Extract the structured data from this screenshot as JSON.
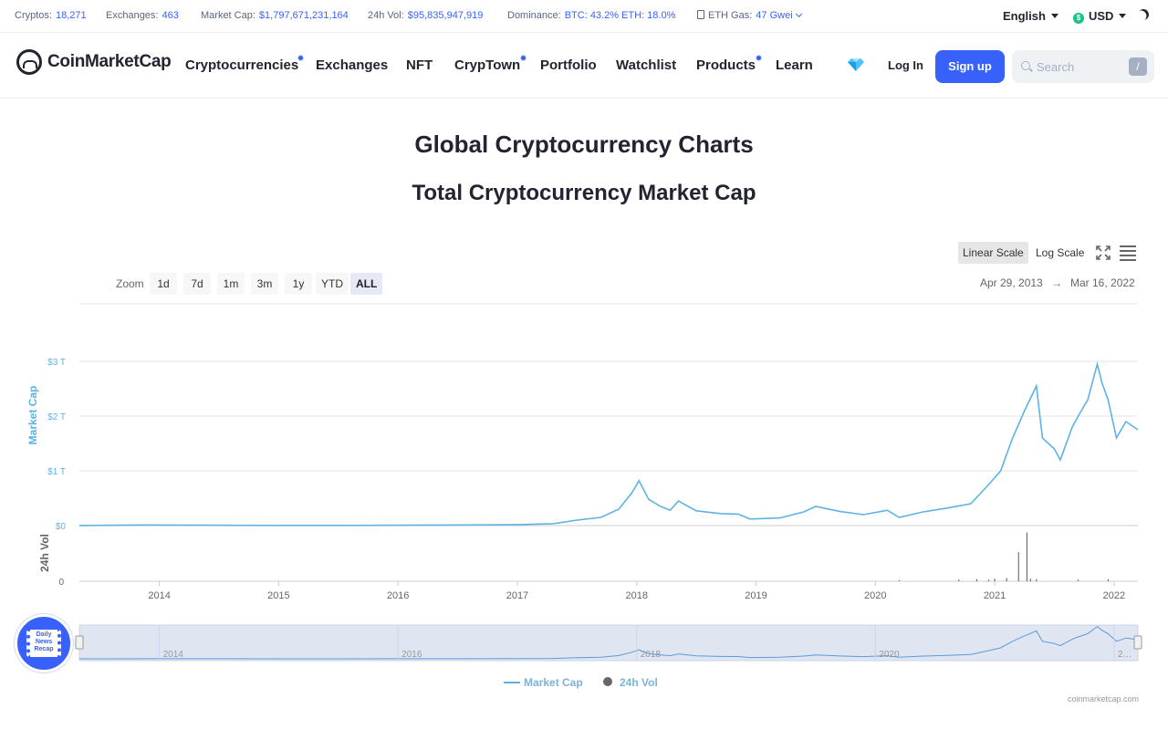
{
  "stats": {
    "cryptos_label": "Cryptos:",
    "cryptos": "18,271",
    "exchanges_label": "Exchanges:",
    "exchanges": "463",
    "mcap_label": "Market Cap:",
    "mcap": "$1,797,671,231,164",
    "vol_label": "24h Vol:",
    "vol": "$95,835,947,919",
    "dom_label": "Dominance:",
    "dom": "BTC: 43.2% ETH: 18.0%",
    "gas_label": "ETH Gas:",
    "gas": "47 Gwei"
  },
  "top_right": {
    "language": "English",
    "currency": "USD",
    "currency_icon": "$"
  },
  "header": {
    "logo": "CoinMarketCap",
    "nav": [
      "Cryptocurrencies",
      "Exchanges",
      "NFT",
      "CrypTown",
      "Portfolio",
      "Watchlist",
      "Products",
      "Learn"
    ],
    "login": "Log In",
    "signup": "Sign up",
    "search_placeholder": "Search",
    "search_shortcut": "/"
  },
  "page": {
    "title": "Global Cryptocurrency Charts",
    "chart_title": "Total Cryptocurrency Market Cap"
  },
  "controls": {
    "linear": "Linear Scale",
    "log": "Log Scale",
    "zoom_label": "Zoom",
    "zoom_options": [
      "1d",
      "7d",
      "1m",
      "3m",
      "1y",
      "YTD",
      "ALL"
    ],
    "zoom_selected": "ALL",
    "date_from": "Apr 29, 2013",
    "date_arrow": "→",
    "date_to": "Mar 16, 2022"
  },
  "recap_text": "Daily News Recap",
  "watermark": "coinmarketcap.com",
  "colors": {
    "line": "#5eb3e4",
    "volume": "#555555",
    "accent": "#3861fb"
  },
  "chart_data": {
    "type": "line",
    "y_axis_label": "Market Cap",
    "y_ticks": [
      "$0",
      "$1 T",
      "$2 T",
      "$3 T"
    ],
    "ylim": [
      0,
      3
    ],
    "volume_axis_label": "24h Vol",
    "volume_ticks": [
      "0"
    ],
    "x_ticks": [
      "2014",
      "2015",
      "2016",
      "2017",
      "2018",
      "2019",
      "2020",
      "2021",
      "2022"
    ],
    "navigator_ticks": [
      "2014",
      "2016",
      "2018",
      "2020",
      "2…"
    ],
    "xlim": [
      2013.33,
      2022.2
    ],
    "series": [
      {
        "name": "Market Cap",
        "unit": "trillion USD",
        "points": [
          [
            2013.33,
            0.001
          ],
          [
            2013.9,
            0.012
          ],
          [
            2014.1,
            0.01
          ],
          [
            2014.5,
            0.007
          ],
          [
            2015.0,
            0.004
          ],
          [
            2015.5,
            0.004
          ],
          [
            2016.0,
            0.007
          ],
          [
            2016.5,
            0.012
          ],
          [
            2017.0,
            0.018
          ],
          [
            2017.3,
            0.035
          ],
          [
            2017.5,
            0.1
          ],
          [
            2017.7,
            0.15
          ],
          [
            2017.85,
            0.3
          ],
          [
            2017.96,
            0.6
          ],
          [
            2018.02,
            0.82
          ],
          [
            2018.1,
            0.48
          ],
          [
            2018.2,
            0.35
          ],
          [
            2018.28,
            0.28
          ],
          [
            2018.35,
            0.45
          ],
          [
            2018.5,
            0.27
          ],
          [
            2018.7,
            0.22
          ],
          [
            2018.85,
            0.21
          ],
          [
            2018.95,
            0.12
          ],
          [
            2019.2,
            0.14
          ],
          [
            2019.4,
            0.25
          ],
          [
            2019.5,
            0.35
          ],
          [
            2019.7,
            0.26
          ],
          [
            2019.9,
            0.2
          ],
          [
            2020.1,
            0.28
          ],
          [
            2020.2,
            0.15
          ],
          [
            2020.4,
            0.25
          ],
          [
            2020.6,
            0.32
          ],
          [
            2020.8,
            0.4
          ],
          [
            2020.95,
            0.75
          ],
          [
            2021.05,
            1.0
          ],
          [
            2021.15,
            1.6
          ],
          [
            2021.25,
            2.1
          ],
          [
            2021.35,
            2.55
          ],
          [
            2021.4,
            1.6
          ],
          [
            2021.5,
            1.4
          ],
          [
            2021.55,
            1.2
          ],
          [
            2021.65,
            1.8
          ],
          [
            2021.7,
            2.0
          ],
          [
            2021.78,
            2.3
          ],
          [
            2021.86,
            2.95
          ],
          [
            2021.9,
            2.6
          ],
          [
            2021.95,
            2.3
          ],
          [
            2022.02,
            1.6
          ],
          [
            2022.1,
            1.9
          ],
          [
            2022.2,
            1.75
          ]
        ]
      },
      {
        "name": "24h Vol",
        "unit": "relative",
        "points": [
          [
            2020.2,
            0.02
          ],
          [
            2020.7,
            0.03
          ],
          [
            2020.85,
            0.04
          ],
          [
            2020.95,
            0.03
          ],
          [
            2021.0,
            0.05
          ],
          [
            2021.1,
            0.06
          ],
          [
            2021.2,
            0.55
          ],
          [
            2021.27,
            0.92
          ],
          [
            2021.3,
            0.05
          ],
          [
            2021.35,
            0.04
          ],
          [
            2021.7,
            0.03
          ],
          [
            2021.95,
            0.04
          ]
        ]
      }
    ],
    "legend": [
      "Market Cap",
      "24h Vol"
    ],
    "legend_placement": "bottom-center"
  }
}
